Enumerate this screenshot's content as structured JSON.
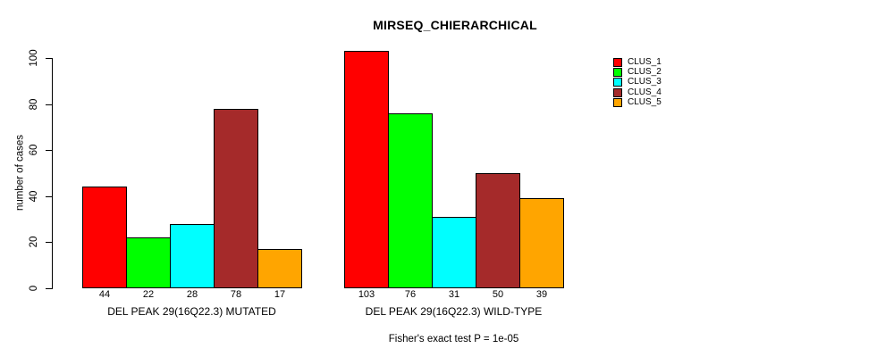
{
  "chart_data": {
    "type": "bar",
    "title": "MIRSEQ_CHIERARCHICAL",
    "ylabel": "number of cases",
    "xlabel": "",
    "ylim": [
      0,
      100
    ],
    "yticks": [
      0,
      20,
      40,
      60,
      80,
      100
    ],
    "grid": false,
    "legend_position": "top-right",
    "bar_borders_color": "#000000",
    "categories": [
      "DEL PEAK 29(16Q22.3) MUTATED",
      "DEL PEAK 29(16Q22.3) WILD-TYPE"
    ],
    "series": [
      {
        "name": "CLUS_1",
        "color": "#FF0000",
        "values": [
          44,
          103
        ]
      },
      {
        "name": "CLUS_2",
        "color": "#00FF00",
        "values": [
          22,
          76
        ]
      },
      {
        "name": "CLUS_3",
        "color": "#00FFFF",
        "values": [
          28,
          31
        ]
      },
      {
        "name": "CLUS_4",
        "color": "#A52A2A",
        "values": [
          78,
          50
        ]
      },
      {
        "name": "CLUS_5",
        "color": "#FFA500",
        "values": [
          17,
          39
        ]
      }
    ],
    "bar_value_labels_shown": true,
    "annotation": "Fisher's exact test P = 1e-05"
  }
}
